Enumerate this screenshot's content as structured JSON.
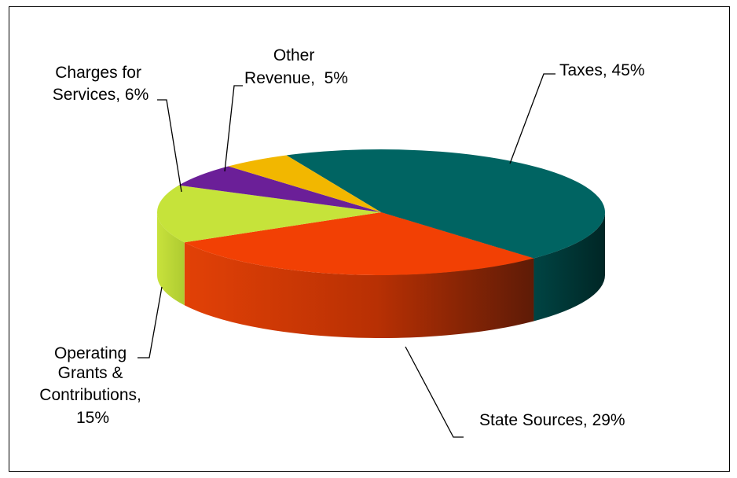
{
  "chart_data": {
    "type": "pie",
    "title": "",
    "style": "3d-tilted",
    "slices": [
      {
        "key": "taxes",
        "label": "Taxes, 45%",
        "category": "Taxes",
        "value": 45,
        "color": "#006462",
        "side_color": "#003a39"
      },
      {
        "key": "state",
        "label": "State Sources, 29%",
        "category": "State Sources",
        "value": 29,
        "color": "#f24004",
        "side_color": "#a32b02"
      },
      {
        "key": "grants",
        "label": "Operating Grants & Contributions, 15%",
        "label_lines": [
          "Operating",
          "Grants &",
          "Contributions,",
          "15%"
        ],
        "category": "Operating Grants & Contributions",
        "value": 15,
        "color": "#c6e33a",
        "side_color": "#b0cf33"
      },
      {
        "key": "charges",
        "label": "Charges for Services, 6%",
        "label_lines": [
          "Charges for",
          "Services, 6%"
        ],
        "category": "Charges for Services",
        "value": 6,
        "color": "#6b1f98",
        "side_color": "#4a1469"
      },
      {
        "key": "other",
        "label": "Other Revenue, 5%",
        "label_lines": [
          "Other",
          "Revenue,  5%"
        ],
        "category": "Other Revenue",
        "value": 5,
        "color": "#f2b700",
        "side_color": "#b58a00"
      }
    ],
    "legend": "none",
    "data_labels": "outside with leader lines"
  }
}
